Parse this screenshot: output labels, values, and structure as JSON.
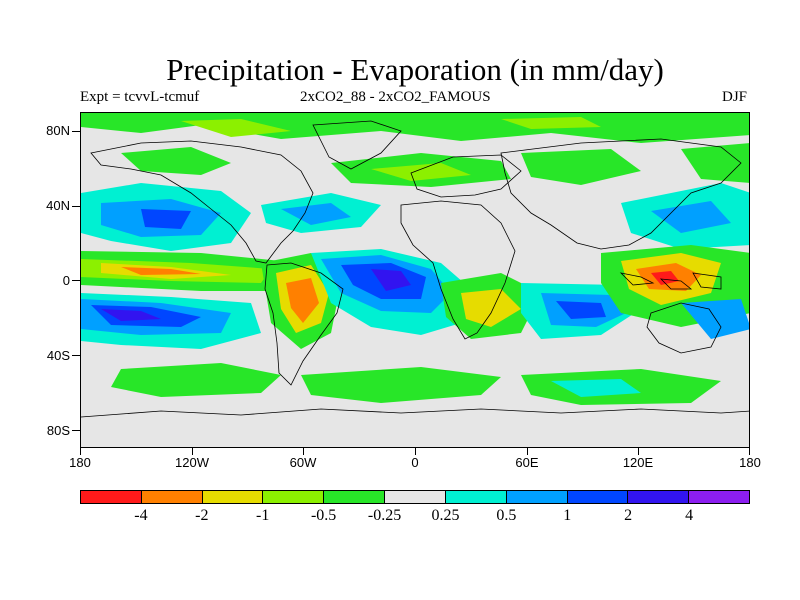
{
  "header": {
    "title": "Precipitation - Evaporation (in mm/day)",
    "expt": "Expt = tcvvL-tcmuf",
    "comparison": "2xCO2_88 - 2xCO2_FAMOUS",
    "season": "DJF"
  },
  "axes": {
    "lat_labels": [
      "80N",
      "40N",
      "0",
      "40S",
      "80S"
    ],
    "lon_labels": [
      "180",
      "120W",
      "60W",
      "0",
      "60E",
      "120E",
      "180"
    ]
  },
  "colorbar": {
    "colors": [
      "#ff1a1a",
      "#ff8000",
      "#e6dc00",
      "#8cf000",
      "#28e628",
      "#e6e6e6",
      "#00f0d2",
      "#00a0ff",
      "#0046ff",
      "#3214f0",
      "#8c1ef0"
    ],
    "labels": [
      "-4",
      "-2",
      "-1",
      "-0.5",
      "-0.25",
      "0.25",
      "0.5",
      "1",
      "2",
      "4"
    ]
  },
  "map": {
    "background_color": "#e6e6e6",
    "coastline_color": "#000000"
  }
}
